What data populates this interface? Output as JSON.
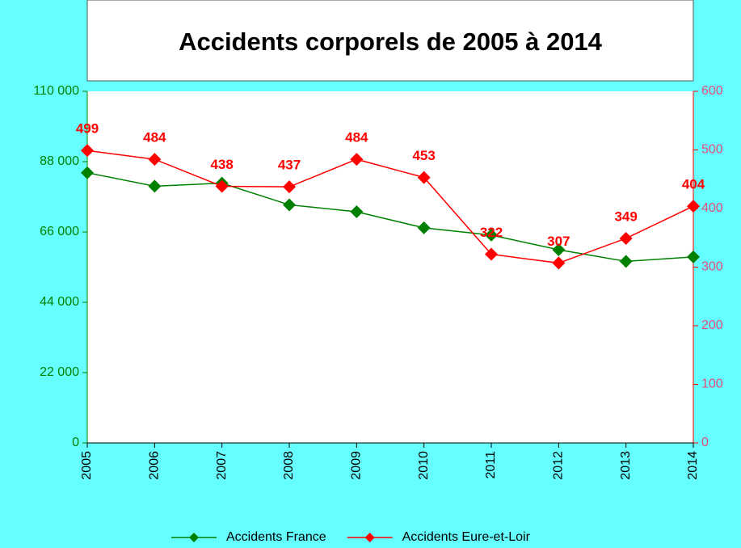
{
  "chart_data": {
    "type": "line",
    "title": "Accidents corporels de 2005 à 2014",
    "categories": [
      "2005",
      "2006",
      "2007",
      "2008",
      "2009",
      "2010",
      "2011",
      "2012",
      "2013",
      "2014"
    ],
    "series": [
      {
        "name": "Accidents France",
        "color": "#008000",
        "values": [
          84525,
          80309,
          81272,
          74487,
          72315,
          67288,
          65024,
          60437,
          56812,
          58191
        ]
      },
      {
        "name": "Accidents Eure-et-Loir",
        "color": "#ff0000",
        "axis": "y2",
        "values": [
          499,
          484,
          438,
          437,
          484,
          453,
          322,
          307,
          349,
          404
        ]
      }
    ],
    "ylim": [
      0,
      110000
    ],
    "yticks": [
      {
        "value": 0,
        "label": "0"
      },
      {
        "value": 22000,
        "label": "22 000"
      },
      {
        "value": 44000,
        "label": "44 000"
      },
      {
        "value": 66000,
        "label": "66 000"
      },
      {
        "value": 88000,
        "label": "88 000"
      },
      {
        "value": 110000,
        "label": "110 000"
      }
    ],
    "y2lim": [
      0,
      600
    ],
    "y2ticks": [
      0,
      100,
      200,
      300,
      400,
      500,
      600
    ],
    "data_labels_series": 1,
    "legend": "bottom"
  }
}
